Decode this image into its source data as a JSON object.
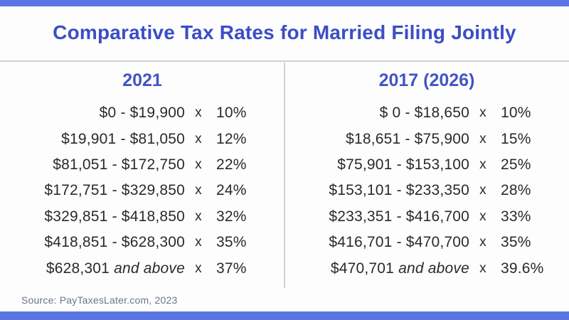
{
  "page": {
    "title": "Comparative Tax Rates for Married Filing Jointly",
    "source": "Source: PayTaxesLater.com, 2023"
  },
  "labels": {
    "multiply": "x"
  },
  "colors": {
    "accent_bar": "#5b74e4",
    "title_text": "#3b4ec5",
    "header_text": "#4255c5",
    "body_text": "#2a2a2e",
    "source_text": "#6a7590",
    "divider": "#d2d2d2"
  },
  "columns": [
    {
      "header": "2021",
      "rows": [
        {
          "range": "$0 - $19,900",
          "suffix": "",
          "rate": "10%"
        },
        {
          "range": "$19,901 - $81,050",
          "suffix": "",
          "rate": "12%"
        },
        {
          "range": "$81,051 - $172,750",
          "suffix": "",
          "rate": "22%"
        },
        {
          "range": "$172,751 - $329,850",
          "suffix": "",
          "rate": "24%"
        },
        {
          "range": "$329,851 - $418,850",
          "suffix": "",
          "rate": "32%"
        },
        {
          "range": "$418,851 - $628,300",
          "suffix": "",
          "rate": "35%"
        },
        {
          "range": "$628,301",
          "suffix": " and above",
          "rate": "37%"
        }
      ]
    },
    {
      "header": "2017 (2026)",
      "rows": [
        {
          "range": "$ 0 - $18,650",
          "suffix": "",
          "rate": "10%"
        },
        {
          "range": "$18,651 - $75,900",
          "suffix": "",
          "rate": "15%"
        },
        {
          "range": "$75,901 - $153,100",
          "suffix": "",
          "rate": "25%"
        },
        {
          "range": "$153,101 - $233,350",
          "suffix": "",
          "rate": "28%"
        },
        {
          "range": "$233,351 - $416,700",
          "suffix": "",
          "rate": "33%"
        },
        {
          "range": "$416,701 - $470,700",
          "suffix": "",
          "rate": "35%"
        },
        {
          "range": "$470,701",
          "suffix": " and above",
          "rate": "39.6%"
        }
      ]
    }
  ],
  "chart_data": {
    "type": "table",
    "title": "Comparative Tax Rates for Married Filing Jointly",
    "columns": [
      "2021",
      "2017 (2026)"
    ],
    "series": [
      {
        "name": "2021",
        "brackets": [
          {
            "range": "$0 - $19,900",
            "rate_pct": 10
          },
          {
            "range": "$19,901 - $81,050",
            "rate_pct": 12
          },
          {
            "range": "$81,051 - $172,750",
            "rate_pct": 22
          },
          {
            "range": "$172,751 - $329,850",
            "rate_pct": 24
          },
          {
            "range": "$329,851 - $418,850",
            "rate_pct": 32
          },
          {
            "range": "$418,851 - $628,300",
            "rate_pct": 35
          },
          {
            "range": "$628,301 and above",
            "rate_pct": 37
          }
        ]
      },
      {
        "name": "2017 (2026)",
        "brackets": [
          {
            "range": "$ 0 - $18,650",
            "rate_pct": 10
          },
          {
            "range": "$18,651 - $75,900",
            "rate_pct": 15
          },
          {
            "range": "$75,901 - $153,100",
            "rate_pct": 25
          },
          {
            "range": "$153,101 - $233,350",
            "rate_pct": 28
          },
          {
            "range": "$233,351 - $416,700",
            "rate_pct": 33
          },
          {
            "range": "$416,701 - $470,700",
            "rate_pct": 35
          },
          {
            "range": "$470,701 and above",
            "rate_pct": 39.6
          }
        ]
      }
    ],
    "source": "Source: PayTaxesLater.com, 2023"
  }
}
